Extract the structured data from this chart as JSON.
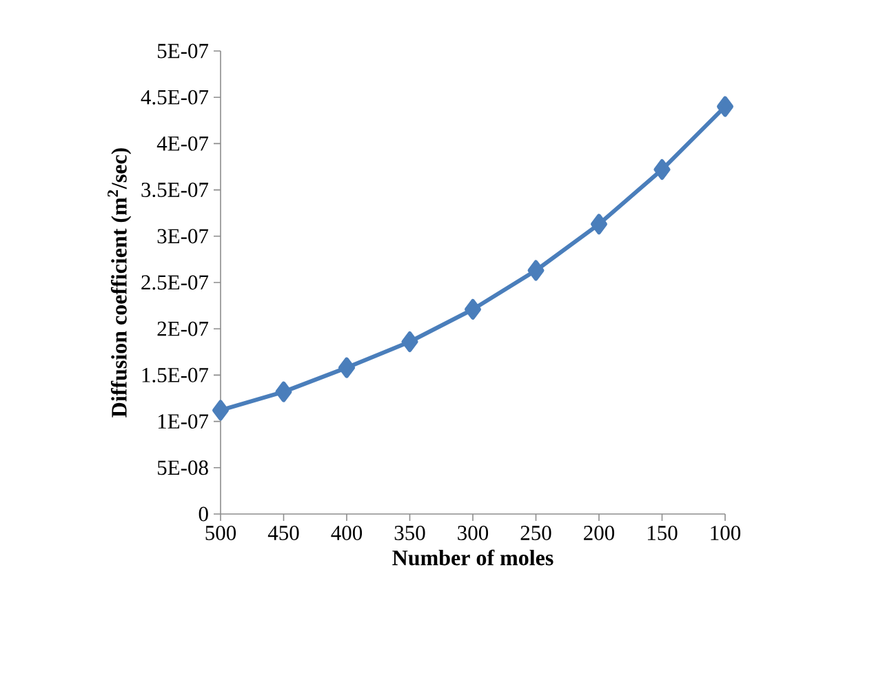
{
  "chart_data": {
    "type": "line",
    "xlabel": "Number of moles",
    "ylabel": "Diffusion coefficient (m$^{2}$/sec)",
    "categories": [
      "500",
      "450",
      "400",
      "350",
      "300",
      "250",
      "200",
      "150",
      "100"
    ],
    "series": [
      {
        "color": "#4a7ebb",
        "values": [
          1.12e-07,
          1.32e-07,
          1.58e-07,
          1.86e-07,
          2.21e-07,
          2.63e-07,
          3.13e-07,
          3.72e-07,
          4.4e-07
        ]
      }
    ],
    "ylim": [
      0,
      5e-07
    ],
    "yticks": [
      0,
      {
        "value": 5e-08,
        "label": "5E-08"
      },
      {
        "value": 1e-07,
        "label": "1E-07"
      },
      {
        "value": 1.5e-07,
        "label": "1.5E-07"
      },
      {
        "value": 2e-07,
        "label": "2E-07"
      },
      {
        "value": 2.5e-07,
        "label": "2.5E-07"
      },
      {
        "value": 3e-07,
        "label": "3E-07"
      },
      {
        "value": 3.5e-07,
        "label": "3.5E-07"
      },
      {
        "value": 4e-07,
        "label": "4E-07"
      },
      {
        "value": 4.5e-07,
        "label": "4.5E-07"
      },
      {
        "value": 5e-07,
        "label": "5E-07"
      }
    ],
    "marker": "diamond",
    "line_style": "solid"
  }
}
